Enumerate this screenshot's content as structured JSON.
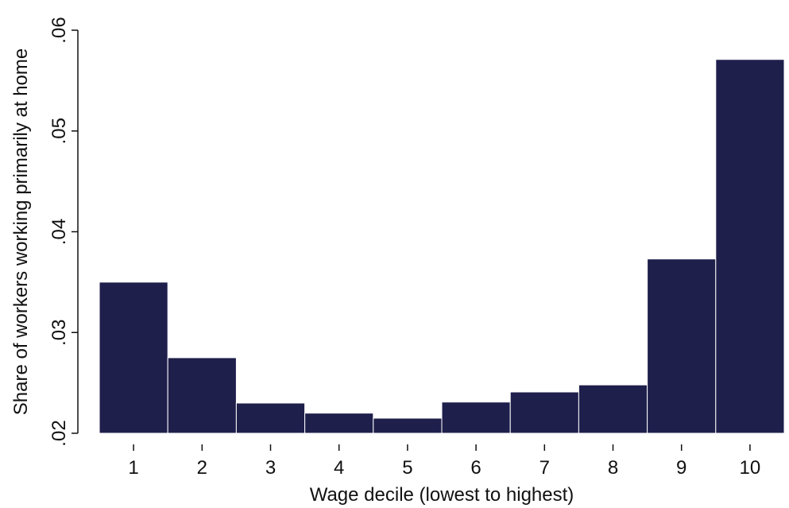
{
  "chart_data": {
    "type": "bar",
    "title": "",
    "xlabel": "Wage decile (lowest to highest)",
    "ylabel": "Share of workers working primarily at home",
    "categories": [
      "1",
      "2",
      "3",
      "4",
      "5",
      "6",
      "7",
      "8",
      "9",
      "10"
    ],
    "values": [
      0.035,
      0.0275,
      0.023,
      0.022,
      0.0215,
      0.0231,
      0.0241,
      0.0248,
      0.0373,
      0.0571
    ],
    "ylim": [
      0.02,
      0.06
    ],
    "yticks": [
      0.02,
      0.03,
      0.04,
      0.05,
      0.06
    ],
    "ytick_labels": [
      ".02",
      ".03",
      ".04",
      ".05",
      ".06"
    ],
    "grid": false,
    "legend": "none",
    "bar_color": "#1f1f4c",
    "bar_edge_color": "#ffffff"
  }
}
